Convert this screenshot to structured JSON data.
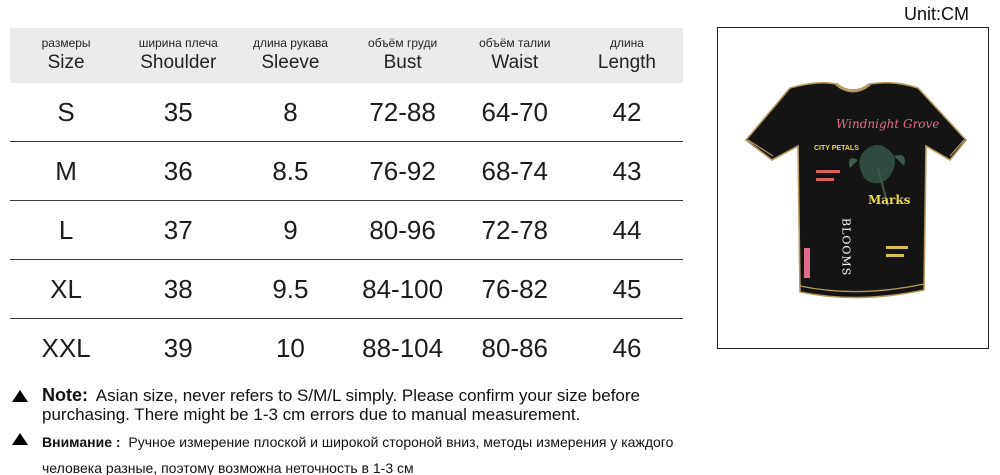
{
  "unit_label": "Unit:CM",
  "columns": [
    {
      "ru": "размеры",
      "en": "Size"
    },
    {
      "ru": "ширина плеча",
      "en": "Shoulder"
    },
    {
      "ru": "длина рукава",
      "en": "Sleeve"
    },
    {
      "ru": "объём груди",
      "en": "Bust"
    },
    {
      "ru": "объём талии",
      "en": "Waist"
    },
    {
      "ru": "длина",
      "en": "Length"
    }
  ],
  "rows": [
    [
      "S",
      "35",
      "8",
      "72-88",
      "64-70",
      "42"
    ],
    [
      "M",
      "36",
      "8.5",
      "76-92",
      "68-74",
      "43"
    ],
    [
      "L",
      "37",
      "9",
      "80-96",
      "72-78",
      "44"
    ],
    [
      "XL",
      "38",
      "9.5",
      "84-100",
      "76-82",
      "45"
    ],
    [
      "XXL",
      "39",
      "10",
      "88-104",
      "80-86",
      "46"
    ]
  ],
  "notes": {
    "en_label": "Note:",
    "en_text": "Asian size, never refers to S/M/L simply. Please confirm your size before purchasing. There might be 1-3 cm errors due to manual measurement.",
    "ru_label": "Внимание :",
    "ru_text": "Ручное измерение плоской и широкой стороной вниз, методы измерения у каждого человека разные, поэтому возможна неточность в 1-3 см"
  },
  "product_image": {
    "icon": "tshirt-icon",
    "print_text": [
      "Windnight Grove",
      "CITY PETALS",
      "Marks",
      "BLOOMS"
    ]
  }
}
